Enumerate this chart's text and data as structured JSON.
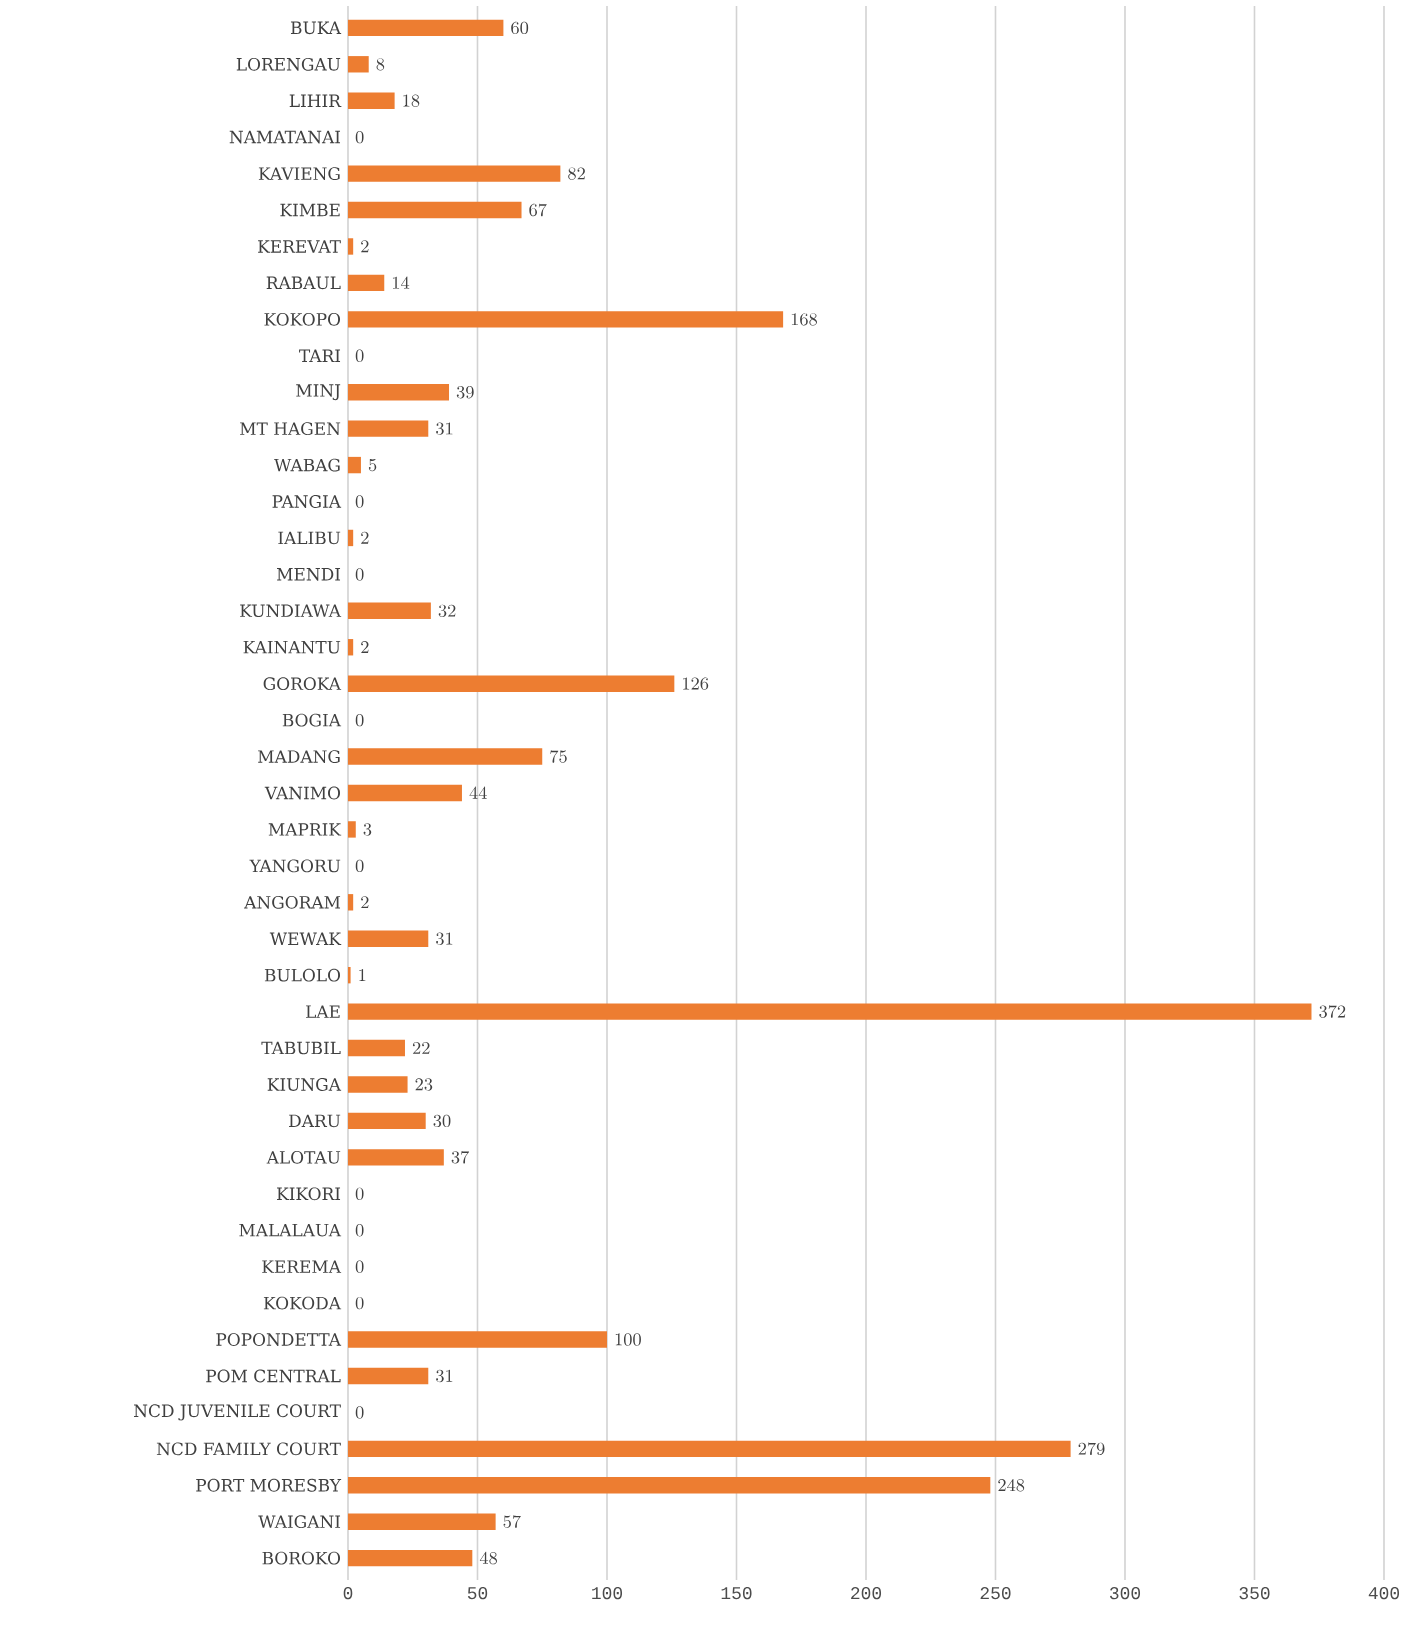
{
  "chart_data": {
    "type": "bar",
    "orientation": "horizontal",
    "categories": [
      "BUKA",
      "LORENGAU",
      "LIHIR",
      "NAMATANAI",
      "KAVIENG",
      "KIMBE",
      "KEREVAT",
      "RABAUL",
      "KOKOPO",
      "TARI",
      "MINJ",
      "MT HAGEN",
      "WABAG",
      "PANGIA",
      "IALIBU",
      "MENDI",
      "KUNDIAWA",
      "KAINANTU",
      "GOROKA",
      "BOGIA",
      "MADANG",
      "VANIMO",
      "MAPRIK",
      "YANGORU",
      "ANGORAM",
      "WEWAK",
      "BULOLO",
      "LAE",
      "TABUBIL",
      "KIUNGA",
      "DARU",
      "ALOTAU",
      "KIKORI",
      "MALALAUA",
      "KEREMA",
      "KOKODA",
      "POPONDETTA",
      "POM CENTRAL",
      "NCD JUVENILE COURT",
      "NCD FAMILY COURT",
      "PORT MORESBY",
      "WAIGANI",
      "BOROKO"
    ],
    "values": [
      60,
      8,
      18,
      0,
      82,
      67,
      2,
      14,
      168,
      0,
      39,
      31,
      5,
      0,
      2,
      0,
      32,
      2,
      126,
      0,
      75,
      44,
      3,
      0,
      2,
      31,
      1,
      372,
      22,
      23,
      30,
      37,
      0,
      0,
      0,
      0,
      100,
      31,
      0,
      279,
      248,
      57,
      48
    ],
    "color": "#ed7d31",
    "xlim": [
      0,
      400
    ],
    "xticks": [
      0,
      50,
      100,
      150,
      200,
      250,
      300,
      350,
      400
    ],
    "grid": "x",
    "data_labels": true
  }
}
